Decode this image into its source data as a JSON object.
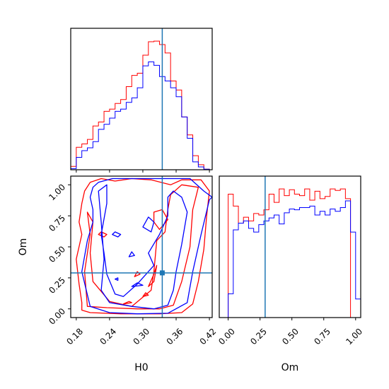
{
  "chart_data": [
    {
      "panel": "H0 marginal (top-left)",
      "type": "histogram",
      "x_param": "H0",
      "xlim": [
        0.17,
        0.425
      ],
      "truth": 0.335,
      "bin_edges": [
        0.17,
        0.18,
        0.19,
        0.2,
        0.21,
        0.22,
        0.23,
        0.24,
        0.25,
        0.26,
        0.27,
        0.28,
        0.29,
        0.3,
        0.31,
        0.32,
        0.33,
        0.34,
        0.35,
        0.36,
        0.37,
        0.38,
        0.39,
        0.4,
        0.41,
        0.42
      ],
      "series": [
        {
          "color": "#ff0000",
          "values": [
            0.6,
            4.0,
            4.6,
            5.4,
            7.8,
            8.5,
            10.4,
            10.8,
            11.8,
            12.5,
            14.8,
            16.8,
            17.2,
            20.4,
            22.8,
            22.9,
            22.3,
            20.8,
            15.8,
            14.2,
            9.4,
            6.2,
            2.5,
            0.9,
            0.1
          ]
        },
        {
          "color": "#0000ff",
          "values": [
            0.2,
            2.2,
            3.4,
            3.9,
            5.0,
            7.2,
            8.1,
            9.2,
            10.4,
            10.8,
            12.0,
            12.8,
            14.6,
            18.5,
            19.2,
            18.6,
            16.6,
            15.8,
            14.6,
            13.0,
            9.4,
            5.6,
            1.4,
            0.5,
            0.1
          ]
        }
      ]
    },
    {
      "panel": "H0 vs Om joint (bottom-left)",
      "type": "contour",
      "x_param": "H0",
      "y_param": "Om",
      "xlim": [
        0.17,
        0.425
      ],
      "ylim": [
        -0.07,
        1.07
      ],
      "xticks": [
        "0.18",
        "0.24",
        "0.30",
        "0.36",
        "0.42"
      ],
      "xtick_values": [
        0.18,
        0.24,
        0.3,
        0.36,
        0.42
      ],
      "yticks": [
        "0.00",
        "0.25",
        "0.50",
        "0.75",
        "1.00"
      ],
      "ytick_values": [
        0.0,
        0.25,
        0.5,
        0.75,
        1.0
      ],
      "xlabel": "H0",
      "ylabel": "Om",
      "truth": [
        0.335,
        0.29
      ],
      "series": [
        {
          "color": "#ff0000",
          "contours": [
            [
              [
                0.19,
                -0.01
              ],
              [
                0.205,
                -0.03
              ],
              [
                0.26,
                -0.04
              ],
              [
                0.33,
                -0.04
              ],
              [
                0.37,
                -0.03
              ],
              [
                0.39,
                0.04
              ],
              [
                0.4,
                0.22
              ],
              [
                0.41,
                0.48
              ],
              [
                0.415,
                0.75
              ],
              [
                0.42,
                0.95
              ],
              [
                0.405,
                1.04
              ],
              [
                0.37,
                1.04
              ],
              [
                0.35,
                1.0
              ],
              [
                0.315,
                1.04
              ],
              [
                0.28,
                1.05
              ],
              [
                0.25,
                1.03
              ],
              [
                0.225,
                1.05
              ],
              [
                0.205,
                1.02
              ],
              [
                0.195,
                0.95
              ],
              [
                0.19,
                0.85
              ],
              [
                0.185,
                0.7
              ],
              [
                0.19,
                0.6
              ],
              [
                0.18,
                0.4
              ],
              [
                0.185,
                0.2
              ],
              [
                0.19,
                0.05
              ],
              [
                0.19,
                -0.01
              ]
            ],
            [
              [
                0.2,
                0.02
              ],
              [
                0.235,
                0.01
              ],
              [
                0.29,
                0.0
              ],
              [
                0.33,
                0.0
              ],
              [
                0.355,
                0.03
              ],
              [
                0.37,
                0.22
              ],
              [
                0.385,
                0.5
              ],
              [
                0.39,
                0.8
              ],
              [
                0.4,
                0.98
              ],
              [
                0.37,
                1.0
              ],
              [
                0.35,
                0.92
              ],
              [
                0.345,
                0.8
              ],
              [
                0.34,
                0.62
              ],
              [
                0.325,
                0.55
              ],
              [
                0.32,
                0.3
              ],
              [
                0.315,
                0.15
              ],
              [
                0.28,
                0.02
              ],
              [
                0.24,
                0.06
              ],
              [
                0.21,
                0.22
              ],
              [
                0.205,
                0.45
              ],
              [
                0.21,
                0.7
              ],
              [
                0.2,
                0.78
              ],
              [
                0.205,
                0.6
              ],
              [
                0.195,
                0.3
              ],
              [
                0.2,
                0.02
              ]
            ],
            [
              [
                0.32,
                0.78
              ],
              [
                0.335,
                0.8
              ],
              [
                0.345,
                0.72
              ],
              [
                0.33,
                0.64
              ],
              [
                0.32,
                0.7
              ],
              [
                0.32,
                0.78
              ]
            ],
            [
              [
                0.225,
                0.62
              ],
              [
                0.235,
                0.6
              ],
              [
                0.23,
                0.58
              ],
              [
                0.22,
                0.6
              ],
              [
                0.225,
                0.62
              ]
            ],
            [
              [
                0.31,
                0.18
              ],
              [
                0.32,
                0.28
              ],
              [
                0.325,
                0.35
              ],
              [
                0.32,
                0.22
              ],
              [
                0.31,
                0.18
              ]
            ],
            [
              [
                0.285,
                0.26
              ],
              [
                0.29,
                0.3
              ],
              [
                0.295,
                0.28
              ],
              [
                0.285,
                0.26
              ]
            ],
            [
              [
                0.3,
                0.1
              ],
              [
                0.305,
                0.13
              ],
              [
                0.31,
                0.11
              ],
              [
                0.3,
                0.1
              ]
            ],
            [
              [
                0.265,
                0.04
              ],
              [
                0.275,
                0.06
              ],
              [
                0.28,
                0.05
              ],
              [
                0.265,
                0.04
              ]
            ]
          ]
        },
        {
          "color": "#0000ff",
          "contours": [
            [
              [
                0.205,
                0.02
              ],
              [
                0.24,
                -0.03
              ],
              [
                0.29,
                -0.04
              ],
              [
                0.345,
                -0.035
              ],
              [
                0.38,
                0.05
              ],
              [
                0.39,
                0.3
              ],
              [
                0.405,
                0.6
              ],
              [
                0.42,
                0.88
              ],
              [
                0.425,
                0.9
              ],
              [
                0.41,
                0.95
              ],
              [
                0.385,
                1.05
              ],
              [
                0.35,
                1.05
              ],
              [
                0.31,
                1.05
              ],
              [
                0.27,
                1.05
              ],
              [
                0.245,
                1.05
              ],
              [
                0.22,
                1.02
              ],
              [
                0.21,
                0.98
              ],
              [
                0.205,
                0.9
              ],
              [
                0.21,
                0.8
              ],
              [
                0.21,
                0.7
              ],
              [
                0.2,
                0.55
              ],
              [
                0.19,
                0.3
              ],
              [
                0.205,
                0.02
              ]
            ],
            [
              [
                0.24,
                0.05
              ],
              [
                0.28,
                0.02
              ],
              [
                0.32,
                0.0
              ],
              [
                0.345,
                0.03
              ],
              [
                0.355,
                0.15
              ],
              [
                0.36,
                0.3
              ],
              [
                0.37,
                0.52
              ],
              [
                0.38,
                0.78
              ],
              [
                0.37,
                0.9
              ],
              [
                0.355,
                0.95
              ],
              [
                0.345,
                0.9
              ],
              [
                0.345,
                0.75
              ],
              [
                0.33,
                0.6
              ],
              [
                0.31,
                0.45
              ],
              [
                0.32,
                0.35
              ],
              [
                0.29,
                0.2
              ],
              [
                0.265,
                0.1
              ],
              [
                0.25,
                0.12
              ],
              [
                0.235,
                0.28
              ],
              [
                0.23,
                0.45
              ],
              [
                0.225,
                0.6
              ],
              [
                0.235,
                0.85
              ],
              [
                0.235,
                1.0
              ],
              [
                0.22,
                0.95
              ],
              [
                0.225,
                0.7
              ],
              [
                0.23,
                0.4
              ],
              [
                0.225,
                0.15
              ],
              [
                0.24,
                0.05
              ]
            ],
            [
              [
                0.3,
                0.66
              ],
              [
                0.31,
                0.74
              ],
              [
                0.32,
                0.7
              ],
              [
                0.315,
                0.62
              ],
              [
                0.3,
                0.66
              ]
            ],
            [
              [
                0.25,
                0.62
              ],
              [
                0.26,
                0.6
              ],
              [
                0.255,
                0.58
              ],
              [
                0.245,
                0.6
              ],
              [
                0.25,
                0.62
              ]
            ],
            [
              [
                0.28,
                0.18
              ],
              [
                0.29,
                0.21
              ],
              [
                0.3,
                0.19
              ],
              [
                0.28,
                0.18
              ]
            ],
            [
              [
                0.275,
                0.42
              ],
              [
                0.28,
                0.46
              ],
              [
                0.285,
                0.43
              ],
              [
                0.275,
                0.42
              ]
            ],
            [
              [
                0.25,
                0.24
              ],
              [
                0.255,
                0.25
              ],
              [
                0.255,
                0.23
              ],
              [
                0.25,
                0.24
              ]
            ]
          ]
        }
      ]
    },
    {
      "panel": "Om marginal (bottom-right)",
      "type": "histogram",
      "x_param": "Om",
      "xlim": [
        -0.07,
        1.04
      ],
      "xticks": [
        "0.00",
        "0.25",
        "0.50",
        "0.75",
        "1.00"
      ],
      "xtick_values": [
        0.0,
        0.25,
        0.5,
        0.75,
        1.0
      ],
      "xlabel": "Om",
      "truth": 0.29,
      "bin_edges": [
        -0.05,
        0.0,
        0.04,
        0.08,
        0.12,
        0.16,
        0.2,
        0.24,
        0.28,
        0.32,
        0.36,
        0.4,
        0.44,
        0.48,
        0.52,
        0.56,
        0.6,
        0.64,
        0.68,
        0.72,
        0.76,
        0.8,
        0.84,
        0.88,
        0.92,
        0.96,
        1.0,
        1.04
      ],
      "series": [
        {
          "color": "#ff0000",
          "values": [
            0,
            16.6,
            15.0,
            12.7,
            13.5,
            13.0,
            14.0,
            13.8,
            14.5,
            16.6,
            15.5,
            17.3,
            16.4,
            17.2,
            16.6,
            16.4,
            17.3,
            15.8,
            17.0,
            16.0,
            16.3,
            17.3,
            17.1,
            17.3,
            16.0,
            0,
            0
          ]
        },
        {
          "color": "#0000ff",
          "values": [
            0,
            3.2,
            11.8,
            12.7,
            13.0,
            12.0,
            11.5,
            12.5,
            13.0,
            13.4,
            13.8,
            12.6,
            14.1,
            14.6,
            14.5,
            14.8,
            14.8,
            15.0,
            13.8,
            14.3,
            13.8,
            14.6,
            14.3,
            14.8,
            15.7,
            11.5,
            2.5
          ]
        }
      ]
    }
  ]
}
